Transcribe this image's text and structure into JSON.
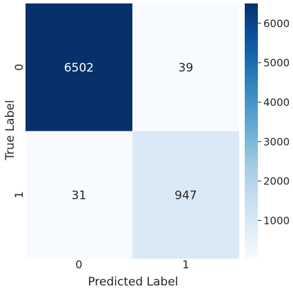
{
  "chart_data": {
    "type": "heatmap",
    "title": "",
    "xlabel": "Predicted Label",
    "ylabel": "True Label",
    "x_categories": [
      "0",
      "1"
    ],
    "y_categories": [
      "0",
      "1"
    ],
    "values": [
      [
        6502,
        39
      ],
      [
        31,
        947
      ]
    ],
    "colormap": "Blues",
    "colorbar": {
      "ticks": [
        1000,
        2000,
        3000,
        4000,
        5000,
        6000
      ],
      "tick_labels": [
        "1000",
        "2000",
        "3000",
        "4000",
        "5000",
        "6000"
      ],
      "range": [
        31,
        6502
      ]
    },
    "grid": false
  }
}
